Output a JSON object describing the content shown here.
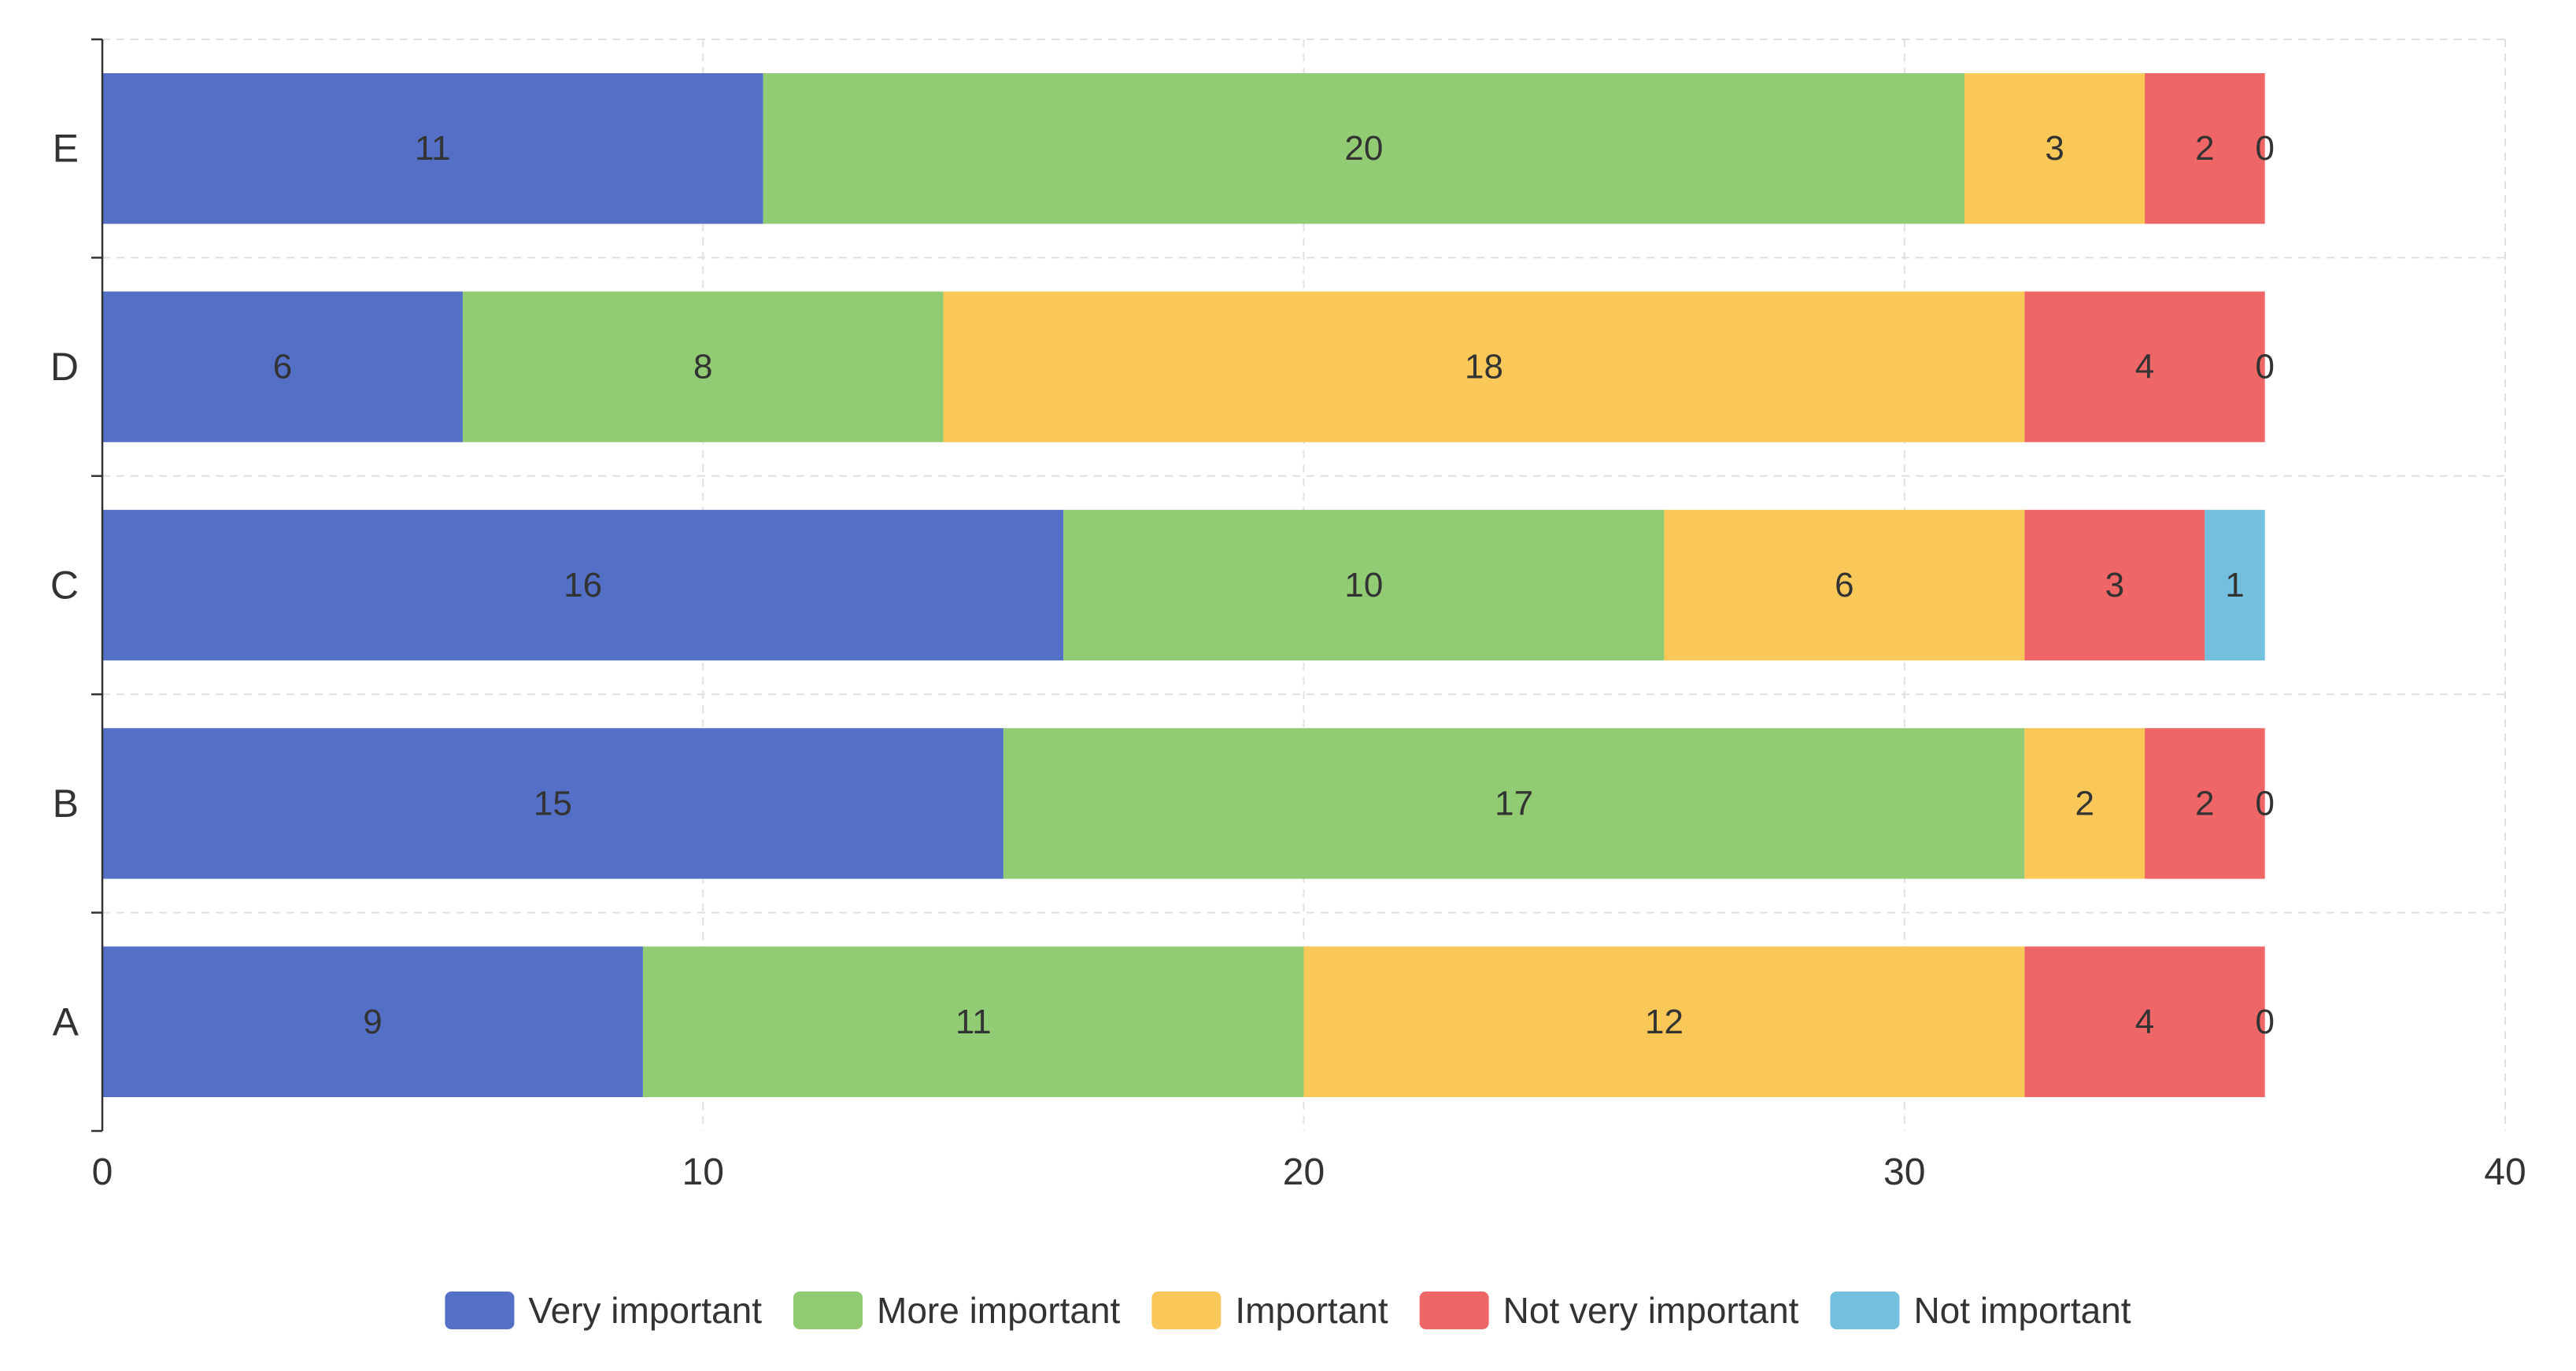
{
  "chart_data": {
    "type": "bar",
    "orientation": "horizontal",
    "stacked": true,
    "categories": [
      "A",
      "B",
      "C",
      "D",
      "E"
    ],
    "series": [
      {
        "name": "Very important",
        "color": "#5470c6",
        "values": [
          9,
          15,
          16,
          6,
          11
        ]
      },
      {
        "name": "More important",
        "color": "#91cc75",
        "values": [
          11,
          17,
          10,
          8,
          20
        ]
      },
      {
        "name": "Important",
        "color": "#fac858",
        "values": [
          12,
          2,
          6,
          18,
          3
        ]
      },
      {
        "name": "Not very important",
        "color": "#ee6666",
        "values": [
          4,
          2,
          3,
          4,
          2
        ]
      },
      {
        "name": "Not important",
        "color": "#73c0de",
        "values": [
          0,
          0,
          1,
          0,
          0
        ]
      }
    ],
    "xlim": [
      0,
      40
    ],
    "xticks": [
      0,
      10,
      20,
      30,
      40
    ],
    "xtick_labels": [
      "0",
      "10",
      "20",
      "30",
      "40"
    ],
    "title": "",
    "xlabel": "",
    "ylabel": "",
    "grid": true,
    "legend_position": "bottom-center"
  }
}
